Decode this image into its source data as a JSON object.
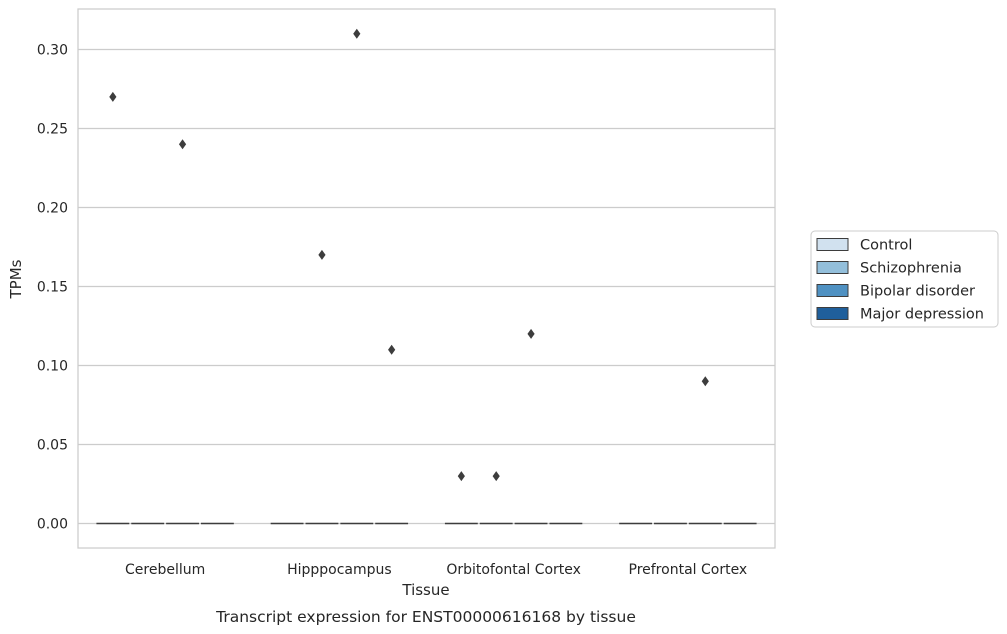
{
  "chart_data": {
    "type": "box",
    "caption": "Transcript expression for ENST00000616168 by tissue",
    "xlabel": "Tissue",
    "ylabel": "TPMs",
    "categories": [
      "Cerebellum",
      "Hipppocampus",
      "Orbitofontal Cortex",
      "Prefrontal Cortex"
    ],
    "ylim": [
      -0.015,
      0.325
    ],
    "yticks": [
      0.0,
      0.05,
      0.1,
      0.15,
      0.2,
      0.25,
      0.3
    ],
    "ytick_labels": [
      "0.00",
      "0.05",
      "0.10",
      "0.15",
      "0.20",
      "0.25",
      "0.30"
    ],
    "grid": "horizontal",
    "legend_position": "right",
    "series": [
      {
        "name": "Control",
        "color": "#d1e1ef",
        "median": [
          0,
          0,
          0,
          0
        ],
        "outliers": [
          [
            0.27
          ],
          [],
          [
            0.03
          ],
          []
        ]
      },
      {
        "name": "Schizophrenia",
        "color": "#93bfdb",
        "median": [
          0,
          0,
          0,
          0
        ],
        "outliers": [
          [],
          [
            0.17
          ],
          [
            0.03
          ],
          []
        ]
      },
      {
        "name": "Bipolar disorder",
        "color": "#4f91c2",
        "median": [
          0,
          0,
          0,
          0
        ],
        "outliers": [
          [
            0.24
          ],
          [
            0.31
          ],
          [
            0.12
          ],
          [
            0.09
          ]
        ]
      },
      {
        "name": "Major depression",
        "color": "#1f5f9c",
        "median": [
          0,
          0,
          0,
          0
        ],
        "outliers": [
          [],
          [
            0.11
          ],
          [],
          []
        ]
      }
    ]
  }
}
